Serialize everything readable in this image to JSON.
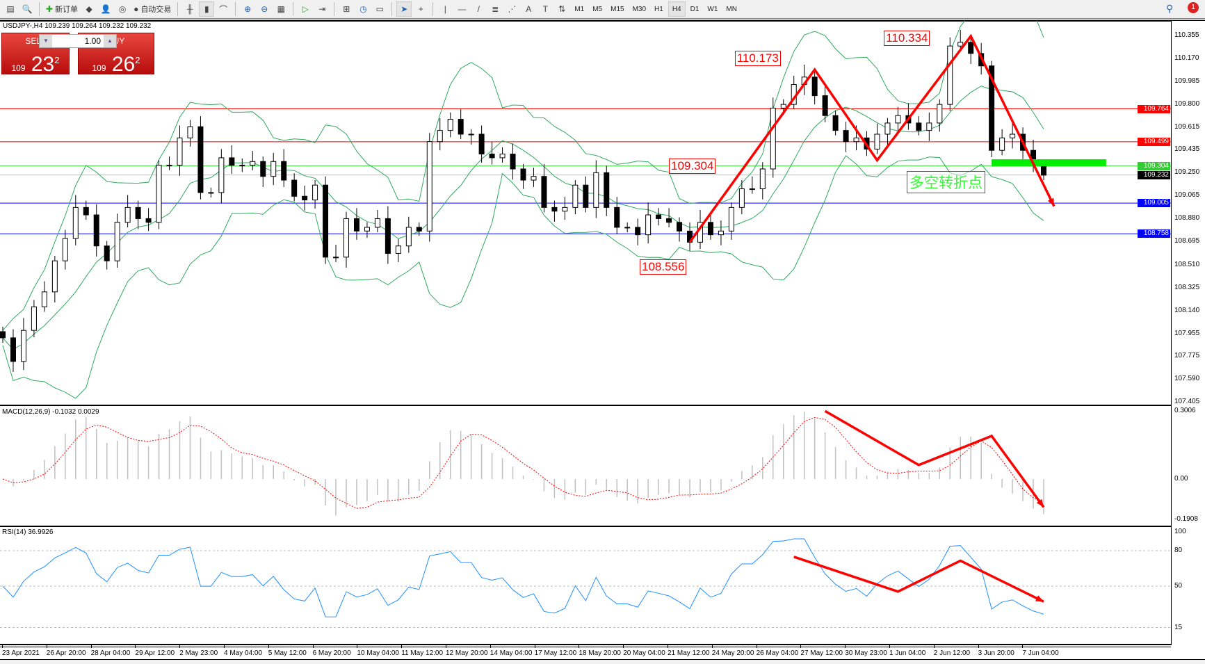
{
  "toolbar": {
    "new_order": "新订单",
    "auto_trading": "自动交易",
    "icons": [
      "window-icon",
      "zoom-window-icon",
      "new-order-icon",
      "gold-icon",
      "account-icon",
      "signals-icon",
      "auto-trading-icon",
      "bar-chart-icon",
      "candle-chart-icon",
      "line-chart-icon",
      "zoom-in-icon",
      "zoom-out-icon",
      "tile-icon",
      "autoscroll-icon",
      "chart-shift-icon",
      "indicators-icon",
      "periods-icon",
      "templates-icon",
      "cursor-icon",
      "crosshair-icon",
      "vertical-line-icon",
      "horizontal-line-icon",
      "trendline-icon",
      "fibonacci-icon",
      "fibo-fan-icon",
      "text-icon",
      "text-label-icon",
      "arrows-icon"
    ],
    "timeframes": [
      "M1",
      "M5",
      "M15",
      "M30",
      "H1",
      "H4",
      "D1",
      "W1",
      "MN"
    ],
    "active_timeframe": "H4",
    "notification_count": "1"
  },
  "chart": {
    "title": "USDJPY-,H4  109.239 109.264 109.232 109.232",
    "sell_label": "SELL",
    "buy_label": "BUY",
    "lot": "1.00",
    "sell_big": "109",
    "sell_main": "23",
    "sell_sup": "2",
    "buy_big": "109",
    "buy_main": "26",
    "buy_sup": "2",
    "turn_text": "多空转折点"
  },
  "chart_data": [
    {
      "type": "candlestick",
      "symbol": "USDJPY-",
      "timeframe": "H4",
      "ylim": [
        107.405,
        110.355
      ],
      "yticks": [
        "110.355",
        "110.170",
        "109.985",
        "109.800",
        "109.615",
        "109.435",
        "109.250",
        "109.065",
        "108.880",
        "108.695",
        "108.510",
        "108.325",
        "108.140",
        "107.955",
        "107.775",
        "107.590",
        "107.405"
      ],
      "xticks": [
        "23 Apr 2021",
        "26 Apr 20:00",
        "28 Apr 04:00",
        "29 Apr 12:00",
        "2 May 23:00",
        "4 May 04:00",
        "5 May 12:00",
        "6 May 20:00",
        "10 May 04:00",
        "11 May 12:00",
        "12 May 20:00",
        "14 May 04:00",
        "17 May 12:00",
        "18 May 20:00",
        "20 May 04:00",
        "21 May 12:00",
        "24 May 20:00",
        "26 May 04:00",
        "27 May 12:00",
        "30 May 23:00",
        "1 Jun 04:00",
        "2 Jun 12:00",
        "3 Jun 20:00",
        "7 Jun 04:00"
      ],
      "close": [
        107.92,
        107.73,
        107.98,
        108.17,
        108.29,
        108.54,
        108.72,
        108.97,
        108.91,
        108.66,
        108.54,
        108.85,
        108.97,
        108.88,
        108.85,
        109.31,
        109.31,
        109.53,
        109.62,
        109.09,
        109.09,
        109.37,
        109.31,
        109.31,
        109.34,
        109.22,
        109.34,
        109.19,
        109.06,
        109.03,
        109.15,
        108.57,
        108.57,
        108.88,
        108.78,
        108.81,
        108.88,
        108.6,
        108.66,
        108.81,
        108.78,
        109.5,
        109.59,
        109.68,
        109.56,
        109.56,
        109.4,
        109.37,
        109.4,
        109.28,
        109.19,
        109.22,
        108.97,
        108.94,
        108.97,
        109.15,
        108.97,
        109.25,
        108.97,
        108.81,
        108.81,
        108.75,
        108.91,
        108.88,
        108.85,
        108.78,
        108.69,
        108.85,
        108.75,
        108.78,
        108.97,
        109.12,
        109.12,
        109.28,
        109.77,
        109.8,
        109.96,
        110.02,
        109.87,
        109.71,
        109.59,
        109.5,
        109.53,
        109.44,
        109.56,
        109.65,
        109.71,
        109.65,
        109.59,
        109.65,
        109.8,
        110.27,
        110.3,
        110.21,
        110.11,
        109.43,
        109.53,
        109.56,
        109.43,
        109.31,
        109.23
      ],
      "levels": [
        {
          "price": "109.764",
          "color": "#ff0000"
        },
        {
          "price": "109.499",
          "color": "#ff0000"
        },
        {
          "price": "109.304",
          "color": "#33cc33"
        },
        {
          "price": "109.232",
          "color": "#000000",
          "line": "#c0c0c0"
        },
        {
          "price": "109.005",
          "color": "#0000ff"
        },
        {
          "price": "108.758",
          "color": "#0000ff"
        }
      ],
      "price_labels": [
        {
          "text": "110.173",
          "bar": 77,
          "price": 110.173
        },
        {
          "text": "110.334",
          "bar": 92,
          "price": 110.334
        },
        {
          "text": "109.304",
          "bar": 66,
          "price": 109.304
        },
        {
          "text": "108.556",
          "bar": 66,
          "price": 108.556
        }
      ],
      "arrows": [
        [
          66,
          108.69
        ],
        [
          78,
          110.08
        ],
        [
          84,
          109.35
        ],
        [
          93,
          110.35
        ],
        [
          101,
          108.98
        ]
      ],
      "zone": {
        "price": 109.33,
        "from_bar": 95,
        "to_bar": 106,
        "color": "#00ee00"
      },
      "band_color": "#2eaa5c"
    },
    {
      "type": "bar",
      "name": "MACD(12,26,9) -0.1032 0.0029",
      "ylim": [
        -0.1908,
        0.3006
      ],
      "yticks": [
        "0.3006",
        "0.00",
        "-0.1908"
      ],
      "arrows": [
        [
          79,
          0.3
        ],
        [
          88,
          0.062
        ],
        [
          95,
          0.19
        ],
        [
          100,
          -0.124
        ]
      ],
      "hist_color": "#c0c0c0",
      "signal_color": "#ff0000"
    },
    {
      "type": "line",
      "name": "RSI(14) 36.9926",
      "ylim": [
        0,
        100
      ],
      "yticks": [
        "100",
        "80",
        "50",
        "15"
      ],
      "arrows": [
        [
          76,
          74.8
        ],
        [
          86,
          45.4
        ],
        [
          92,
          71.5
        ],
        [
          100,
          36.9
        ]
      ],
      "line_color": "#1e90ff"
    }
  ]
}
